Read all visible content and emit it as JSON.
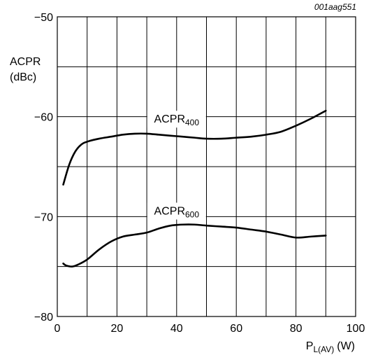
{
  "figure_id": "001aag551",
  "chart_data": {
    "type": "line",
    "title": "",
    "ylabel_line1": "ACPR",
    "ylabel_line2": "(dBc)",
    "xlabel_main": "P",
    "xlabel_sub": "L(AV)",
    "xlabel_unit": "(W)",
    "xlim": [
      0,
      100
    ],
    "ylim": [
      -80,
      -50
    ],
    "xticks": [
      0,
      20,
      40,
      60,
      80,
      100
    ],
    "xtick_labels": [
      "0",
      "20",
      "40",
      "60",
      "80",
      "100"
    ],
    "yticks": [
      -50,
      -60,
      -70,
      -80
    ],
    "ytick_labels": [
      "−50",
      "−60",
      "−70",
      "−80"
    ],
    "x_grid_step": 10,
    "y_grid_step": 5,
    "grid": true,
    "line_color": "#000000",
    "series": [
      {
        "name_main": "ACPR",
        "name_sub": "400",
        "label_at": [
          40,
          -60.6
        ],
        "x": [
          2,
          4,
          6,
          8,
          10,
          14,
          18,
          22,
          26,
          30,
          34,
          38,
          42,
          46,
          50,
          55,
          60,
          65,
          70,
          75,
          80,
          85,
          90
        ],
        "y": [
          -66.8,
          -64.8,
          -63.5,
          -62.8,
          -62.5,
          -62.2,
          -62.0,
          -61.8,
          -61.7,
          -61.7,
          -61.8,
          -61.9,
          -62.0,
          -62.1,
          -62.2,
          -62.2,
          -62.1,
          -62.0,
          -61.8,
          -61.5,
          -60.9,
          -60.2,
          -59.4
        ]
      },
      {
        "name_main": "ACPR",
        "name_sub": "600",
        "label_at": [
          40,
          -69.8
        ],
        "x": [
          2,
          3,
          5,
          7,
          10,
          14,
          18,
          22,
          26,
          30,
          34,
          38,
          42,
          46,
          50,
          55,
          60,
          65,
          70,
          75,
          80,
          85,
          90
        ],
        "y": [
          -74.7,
          -74.9,
          -75.0,
          -74.8,
          -74.3,
          -73.3,
          -72.5,
          -72.0,
          -71.8,
          -71.6,
          -71.2,
          -70.9,
          -70.8,
          -70.8,
          -70.9,
          -71.0,
          -71.1,
          -71.3,
          -71.5,
          -71.8,
          -72.1,
          -72.0,
          -71.9
        ]
      }
    ]
  }
}
